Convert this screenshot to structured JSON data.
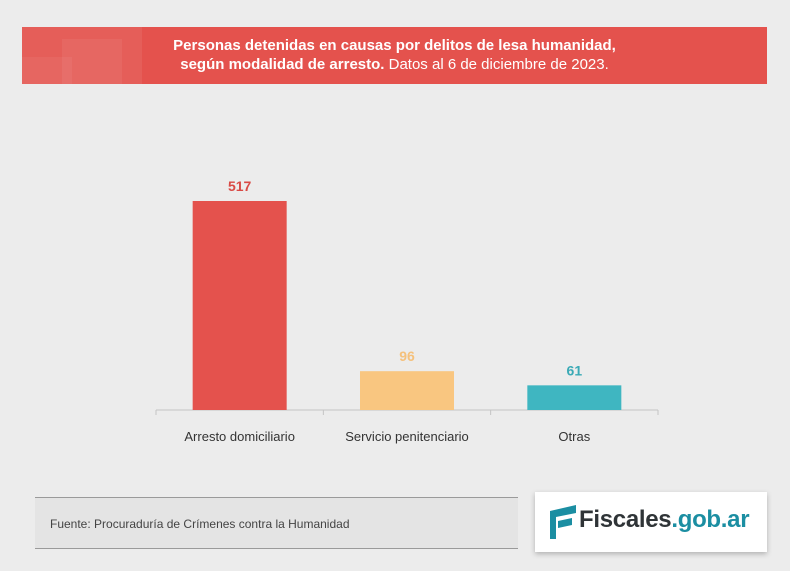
{
  "header": {
    "title_bold_line1": "Personas detenidas en causas por delitos de lesa humanidad,",
    "title_bold_line2": "según modalidad de arresto.",
    "title_regular": "Datos al 6 de diciembre de 2023."
  },
  "chart_data": {
    "type": "bar",
    "title": "Personas detenidas en causas por delitos de lesa humanidad, según modalidad de arresto. Datos al 6 de diciembre de 2023.",
    "categories": [
      "Arresto domiciliario",
      "Servicio penitenciario",
      "Otras"
    ],
    "values": [
      517,
      96,
      61
    ],
    "colors": [
      "#e4524d",
      "#f9c680",
      "#3fb6c1"
    ],
    "value_label_colors": [
      "#d94a45",
      "#f5c17c",
      "#3aaab6"
    ],
    "xlabel": "",
    "ylabel": "",
    "ylim": [
      0,
      517
    ],
    "grid": false
  },
  "footer": {
    "source": "Fuente: Procuraduría de Crímenes contra la Humanidad",
    "logo_main": "Fiscales",
    "logo_domain": ".gob.ar"
  }
}
